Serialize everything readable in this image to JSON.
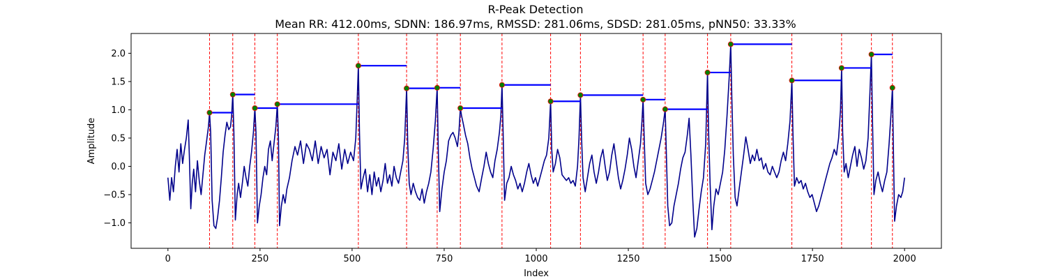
{
  "chart_data": {
    "type": "line",
    "title": "R-Peak Detection",
    "subtitle": "Mean RR: 412.00ms, SDNN: 186.97ms, RMSSD: 281.06ms, SDSD: 281.05ms, pNN50: 33.33%",
    "xlabel": "Index",
    "ylabel": "Amplitude",
    "xlim": [
      -100,
      2100
    ],
    "ylim": [
      -1.45,
      2.35
    ],
    "xticks": [
      0,
      250,
      500,
      750,
      1000,
      1250,
      1500,
      1750,
      2000
    ],
    "yticks": [
      -1.0,
      -0.5,
      0.0,
      0.5,
      1.0,
      1.5,
      2.0
    ],
    "grid": false,
    "colors": {
      "signal": "#00008b",
      "peak_lines": "#ff0000",
      "peaks": "#008000",
      "peak_edge": "#ff0000",
      "rr_segments": "#0000ff"
    },
    "peaks": [
      {
        "x": 113,
        "y": 0.95
      },
      {
        "x": 176,
        "y": 1.27
      },
      {
        "x": 236,
        "y": 1.03
      },
      {
        "x": 297,
        "y": 1.1
      },
      {
        "x": 517,
        "y": 1.78
      },
      {
        "x": 648,
        "y": 1.38
      },
      {
        "x": 731,
        "y": 1.39
      },
      {
        "x": 794,
        "y": 1.03
      },
      {
        "x": 907,
        "y": 1.44
      },
      {
        "x": 1039,
        "y": 1.15
      },
      {
        "x": 1120,
        "y": 1.26
      },
      {
        "x": 1290,
        "y": 1.18
      },
      {
        "x": 1350,
        "y": 1.01
      },
      {
        "x": 1465,
        "y": 1.66
      },
      {
        "x": 1528,
        "y": 2.16
      },
      {
        "x": 1694,
        "y": 1.52
      },
      {
        "x": 1829,
        "y": 1.74
      },
      {
        "x": 1910,
        "y": 1.98
      },
      {
        "x": 1967,
        "y": 1.39
      }
    ],
    "signal": [
      [
        0,
        -0.2
      ],
      [
        5,
        -0.6
      ],
      [
        10,
        -0.2
      ],
      [
        15,
        -0.45
      ],
      [
        20,
        0.0
      ],
      [
        25,
        0.3
      ],
      [
        30,
        -0.1
      ],
      [
        35,
        0.4
      ],
      [
        40,
        0.05
      ],
      [
        45,
        0.3
      ],
      [
        50,
        0.5
      ],
      [
        55,
        0.82
      ],
      [
        58,
        0.2
      ],
      [
        62,
        -0.75
      ],
      [
        66,
        -0.3
      ],
      [
        70,
        -0.05
      ],
      [
        75,
        -0.45
      ],
      [
        80,
        0.1
      ],
      [
        85,
        -0.25
      ],
      [
        90,
        -0.5
      ],
      [
        95,
        -0.15
      ],
      [
        100,
        0.2
      ],
      [
        105,
        0.45
      ],
      [
        110,
        0.7
      ],
      [
        113,
        0.95
      ],
      [
        116,
        0.6
      ],
      [
        120,
        -0.6
      ],
      [
        125,
        -1.05
      ],
      [
        130,
        -1.1
      ],
      [
        135,
        -0.9
      ],
      [
        140,
        -0.6
      ],
      [
        145,
        -0.2
      ],
      [
        150,
        0.25
      ],
      [
        155,
        0.55
      ],
      [
        160,
        0.78
      ],
      [
        165,
        0.65
      ],
      [
        170,
        0.7
      ],
      [
        173,
        0.9
      ],
      [
        176,
        1.27
      ],
      [
        179,
        0.6
      ],
      [
        183,
        -0.95
      ],
      [
        188,
        -0.5
      ],
      [
        192,
        -0.3
      ],
      [
        197,
        -0.55
      ],
      [
        202,
        -0.3
      ],
      [
        207,
        0.0
      ],
      [
        212,
        -0.2
      ],
      [
        217,
        -0.35
      ],
      [
        222,
        0.0
      ],
      [
        227,
        0.25
      ],
      [
        232,
        0.6
      ],
      [
        236,
        1.03
      ],
      [
        239,
        0.6
      ],
      [
        243,
        -1.0
      ],
      [
        248,
        -0.7
      ],
      [
        253,
        -0.5
      ],
      [
        258,
        -0.2
      ],
      [
        263,
        0.0
      ],
      [
        268,
        -0.15
      ],
      [
        273,
        0.3
      ],
      [
        278,
        0.45
      ],
      [
        283,
        0.1
      ],
      [
        288,
        0.4
      ],
      [
        293,
        0.7
      ],
      [
        297,
        1.1
      ],
      [
        300,
        0.5
      ],
      [
        303,
        -1.05
      ],
      [
        308,
        -0.7
      ],
      [
        313,
        -0.5
      ],
      [
        318,
        -0.65
      ],
      [
        323,
        -0.4
      ],
      [
        330,
        -0.2
      ],
      [
        337,
        0.1
      ],
      [
        345,
        0.35
      ],
      [
        352,
        0.2
      ],
      [
        360,
        0.45
      ],
      [
        368,
        0.05
      ],
      [
        376,
        0.4
      ],
      [
        384,
        0.3
      ],
      [
        392,
        0.1
      ],
      [
        400,
        0.45
      ],
      [
        408,
        0.05
      ],
      [
        416,
        0.35
      ],
      [
        424,
        0.15
      ],
      [
        432,
        0.3
      ],
      [
        440,
        -0.15
      ],
      [
        448,
        0.25
      ],
      [
        456,
        0.1
      ],
      [
        464,
        0.4
      ],
      [
        472,
        -0.05
      ],
      [
        480,
        0.3
      ],
      [
        488,
        0.05
      ],
      [
        496,
        0.25
      ],
      [
        504,
        0.1
      ],
      [
        510,
        0.5
      ],
      [
        514,
        1.2
      ],
      [
        517,
        1.78
      ],
      [
        520,
        0.6
      ],
      [
        524,
        -0.4
      ],
      [
        530,
        -0.2
      ],
      [
        536,
        -0.05
      ],
      [
        542,
        -0.45
      ],
      [
        548,
        -0.15
      ],
      [
        554,
        -0.5
      ],
      [
        560,
        -0.1
      ],
      [
        566,
        -0.35
      ],
      [
        572,
        -0.2
      ],
      [
        578,
        -0.45
      ],
      [
        584,
        -0.25
      ],
      [
        590,
        0.05
      ],
      [
        596,
        -0.3
      ],
      [
        602,
        -0.15
      ],
      [
        608,
        -0.35
      ],
      [
        614,
        0.0
      ],
      [
        620,
        -0.2
      ],
      [
        626,
        -0.3
      ],
      [
        632,
        -0.1
      ],
      [
        638,
        0.1
      ],
      [
        643,
        0.5
      ],
      [
        648,
        1.38
      ],
      [
        651,
        0.4
      ],
      [
        655,
        -0.3
      ],
      [
        660,
        -0.5
      ],
      [
        666,
        -0.3
      ],
      [
        672,
        -0.45
      ],
      [
        678,
        -0.55
      ],
      [
        684,
        -0.6
      ],
      [
        690,
        -0.4
      ],
      [
        696,
        -0.65
      ],
      [
        702,
        -0.45
      ],
      [
        708,
        -0.3
      ],
      [
        714,
        -0.1
      ],
      [
        720,
        0.3
      ],
      [
        726,
        0.8
      ],
      [
        731,
        1.39
      ],
      [
        734,
        0.3
      ],
      [
        738,
        -0.8
      ],
      [
        744,
        -0.4
      ],
      [
        750,
        -0.1
      ],
      [
        756,
        0.1
      ],
      [
        762,
        0.45
      ],
      [
        768,
        0.55
      ],
      [
        774,
        0.6
      ],
      [
        780,
        0.5
      ],
      [
        786,
        0.35
      ],
      [
        790,
        0.6
      ],
      [
        794,
        1.03
      ],
      [
        797,
        0.9
      ],
      [
        802,
        0.75
      ],
      [
        808,
        0.55
      ],
      [
        814,
        0.4
      ],
      [
        820,
        0.15
      ],
      [
        826,
        -0.05
      ],
      [
        832,
        -0.2
      ],
      [
        838,
        -0.35
      ],
      [
        845,
        -0.45
      ],
      [
        852,
        -0.2
      ],
      [
        858,
        0.0
      ],
      [
        864,
        0.25
      ],
      [
        870,
        0.05
      ],
      [
        876,
        -0.1
      ],
      [
        882,
        -0.2
      ],
      [
        888,
        0.1
      ],
      [
        894,
        0.3
      ],
      [
        900,
        0.6
      ],
      [
        904,
        0.9
      ],
      [
        907,
        1.44
      ],
      [
        910,
        0.6
      ],
      [
        914,
        -0.6
      ],
      [
        920,
        -0.3
      ],
      [
        926,
        -0.2
      ],
      [
        932,
        0.0
      ],
      [
        938,
        -0.15
      ],
      [
        944,
        -0.25
      ],
      [
        950,
        -0.4
      ],
      [
        956,
        -0.3
      ],
      [
        962,
        -0.45
      ],
      [
        968,
        -0.3
      ],
      [
        974,
        -0.1
      ],
      [
        980,
        0.05
      ],
      [
        986,
        -0.15
      ],
      [
        992,
        -0.3
      ],
      [
        998,
        -0.2
      ],
      [
        1004,
        -0.35
      ],
      [
        1010,
        -0.2
      ],
      [
        1016,
        -0.05
      ],
      [
        1022,
        0.1
      ],
      [
        1028,
        0.2
      ],
      [
        1034,
        0.5
      ],
      [
        1039,
        1.15
      ],
      [
        1042,
        0.3
      ],
      [
        1046,
        -0.1
      ],
      [
        1052,
        0.05
      ],
      [
        1058,
        0.3
      ],
      [
        1064,
        0.15
      ],
      [
        1070,
        -0.15
      ],
      [
        1076,
        -0.2
      ],
      [
        1082,
        -0.25
      ],
      [
        1088,
        -0.2
      ],
      [
        1094,
        -0.3
      ],
      [
        1100,
        -0.25
      ],
      [
        1106,
        -0.35
      ],
      [
        1112,
        0.0
      ],
      [
        1116,
        0.5
      ],
      [
        1120,
        1.26
      ],
      [
        1123,
        0.5
      ],
      [
        1127,
        -0.2
      ],
      [
        1133,
        -0.45
      ],
      [
        1139,
        -0.2
      ],
      [
        1145,
        0.05
      ],
      [
        1151,
        0.2
      ],
      [
        1157,
        -0.1
      ],
      [
        1163,
        -0.3
      ],
      [
        1169,
        -0.1
      ],
      [
        1175,
        0.15
      ],
      [
        1181,
        0.3
      ],
      [
        1187,
        0.0
      ],
      [
        1193,
        -0.25
      ],
      [
        1199,
        -0.1
      ],
      [
        1205,
        0.2
      ],
      [
        1211,
        0.4
      ],
      [
        1217,
        0.1
      ],
      [
        1223,
        -0.2
      ],
      [
        1229,
        -0.4
      ],
      [
        1235,
        -0.25
      ],
      [
        1241,
        -0.05
      ],
      [
        1247,
        0.2
      ],
      [
        1253,
        0.5
      ],
      [
        1259,
        0.3
      ],
      [
        1265,
        0.0
      ],
      [
        1271,
        -0.2
      ],
      [
        1277,
        0.1
      ],
      [
        1283,
        0.4
      ],
      [
        1287,
        0.8
      ],
      [
        1290,
        1.18
      ],
      [
        1293,
        0.5
      ],
      [
        1297,
        -0.3
      ],
      [
        1303,
        -0.5
      ],
      [
        1309,
        -0.4
      ],
      [
        1315,
        -0.25
      ],
      [
        1321,
        -0.1
      ],
      [
        1327,
        0.1
      ],
      [
        1333,
        0.3
      ],
      [
        1339,
        0.5
      ],
      [
        1345,
        0.75
      ],
      [
        1350,
        1.01
      ],
      [
        1353,
        0.3
      ],
      [
        1357,
        -0.7
      ],
      [
        1362,
        -1.05
      ],
      [
        1368,
        -1.0
      ],
      [
        1374,
        -0.7
      ],
      [
        1380,
        -0.5
      ],
      [
        1386,
        -0.3
      ],
      [
        1392,
        -0.05
      ],
      [
        1398,
        0.15
      ],
      [
        1404,
        0.25
      ],
      [
        1410,
        0.55
      ],
      [
        1415,
        0.85
      ],
      [
        1420,
        0.2
      ],
      [
        1425,
        -0.6
      ],
      [
        1430,
        -1.25
      ],
      [
        1436,
        -1.1
      ],
      [
        1442,
        -0.75
      ],
      [
        1448,
        -0.45
      ],
      [
        1454,
        -0.2
      ],
      [
        1460,
        0.4
      ],
      [
        1465,
        1.66
      ],
      [
        1468,
        0.6
      ],
      [
        1472,
        -0.3
      ],
      [
        1477,
        -1.12
      ],
      [
        1482,
        -0.7
      ],
      [
        1488,
        -0.4
      ],
      [
        1494,
        -0.5
      ],
      [
        1500,
        -0.3
      ],
      [
        1506,
        -0.1
      ],
      [
        1512,
        0.3
      ],
      [
        1518,
        0.9
      ],
      [
        1524,
        1.6
      ],
      [
        1528,
        2.16
      ],
      [
        1531,
        1.2
      ],
      [
        1535,
        0.2
      ],
      [
        1540,
        -0.55
      ],
      [
        1545,
        -0.7
      ],
      [
        1551,
        -0.4
      ],
      [
        1557,
        -0.1
      ],
      [
        1563,
        0.2
      ],
      [
        1569,
        0.52
      ],
      [
        1575,
        0.3
      ],
      [
        1581,
        0.05
      ],
      [
        1587,
        0.2
      ],
      [
        1593,
        0.1
      ],
      [
        1599,
        0.3
      ],
      [
        1605,
        0.1
      ],
      [
        1611,
        0.15
      ],
      [
        1617,
        -0.05
      ],
      [
        1623,
        0.05
      ],
      [
        1629,
        -0.1
      ],
      [
        1635,
        -0.15
      ],
      [
        1641,
        0.0
      ],
      [
        1647,
        -0.1
      ],
      [
        1653,
        -0.2
      ],
      [
        1659,
        -0.1
      ],
      [
        1665,
        0.1
      ],
      [
        1671,
        0.25
      ],
      [
        1677,
        0.1
      ],
      [
        1683,
        0.4
      ],
      [
        1689,
        0.8
      ],
      [
        1694,
        1.52
      ],
      [
        1697,
        0.6
      ],
      [
        1701,
        -0.35
      ],
      [
        1707,
        -0.2
      ],
      [
        1713,
        -0.3
      ],
      [
        1719,
        -0.25
      ],
      [
        1725,
        -0.4
      ],
      [
        1731,
        -0.3
      ],
      [
        1737,
        -0.45
      ],
      [
        1743,
        -0.55
      ],
      [
        1749,
        -0.5
      ],
      [
        1755,
        -0.65
      ],
      [
        1761,
        -0.8
      ],
      [
        1767,
        -0.7
      ],
      [
        1773,
        -0.55
      ],
      [
        1779,
        -0.4
      ],
      [
        1785,
        -0.25
      ],
      [
        1791,
        -0.1
      ],
      [
        1797,
        0.05
      ],
      [
        1803,
        0.15
      ],
      [
        1809,
        0.3
      ],
      [
        1815,
        0.2
      ],
      [
        1821,
        0.5
      ],
      [
        1826,
        1.0
      ],
      [
        1829,
        1.74
      ],
      [
        1832,
        0.6
      ],
      [
        1836,
        -0.1
      ],
      [
        1841,
        0.05
      ],
      [
        1847,
        -0.2
      ],
      [
        1853,
        0.0
      ],
      [
        1859,
        0.2
      ],
      [
        1865,
        0.35
      ],
      [
        1871,
        0.0
      ],
      [
        1877,
        0.3
      ],
      [
        1883,
        0.15
      ],
      [
        1889,
        -0.05
      ],
      [
        1895,
        0.1
      ],
      [
        1901,
        0.5
      ],
      [
        1906,
        1.3
      ],
      [
        1910,
        1.98
      ],
      [
        1913,
        0.8
      ],
      [
        1917,
        -0.5
      ],
      [
        1922,
        -0.25
      ],
      [
        1928,
        -0.1
      ],
      [
        1934,
        -0.3
      ],
      [
        1940,
        -0.45
      ],
      [
        1946,
        -0.25
      ],
      [
        1952,
        -0.1
      ],
      [
        1958,
        0.4
      ],
      [
        1963,
        0.9
      ],
      [
        1967,
        1.39
      ],
      [
        1970,
        0.2
      ],
      [
        1973,
        -0.97
      ],
      [
        1978,
        -0.7
      ],
      [
        1984,
        -0.5
      ],
      [
        1990,
        -0.55
      ],
      [
        1995,
        -0.45
      ],
      [
        2000,
        -0.2
      ]
    ]
  }
}
